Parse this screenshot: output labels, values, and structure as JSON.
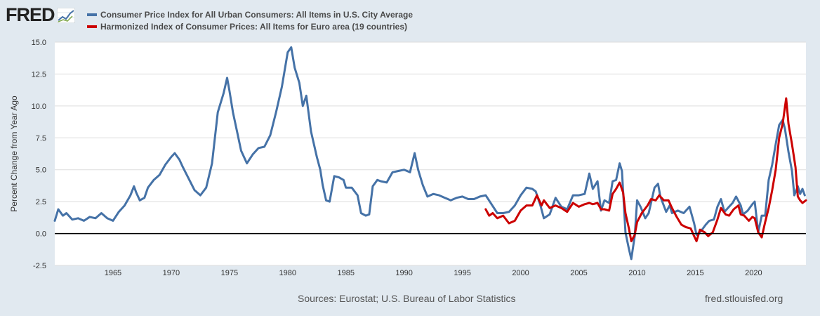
{
  "logo": {
    "text": "FRED"
  },
  "legend": [
    {
      "name": "Consumer Price Index for All Urban Consumers: All Items in U.S. City Average",
      "color": "#4572a7"
    },
    {
      "name": "Harmonized Index of Consumer Prices: All Items for Euro area (19 countries)",
      "color": "#cc0000"
    }
  ],
  "footer": {
    "sources": "Sources: Eurostat; U.S. Bureau of Labor Statistics",
    "url": "fred.stlouisfed.org"
  },
  "colors": {
    "background": "#e1e9f0",
    "plot_background": "#ffffff",
    "grid": "#dddddd",
    "zero_line": "#000000"
  },
  "chart_data": {
    "type": "line",
    "title": "",
    "xlabel": "",
    "ylabel": "Percent Change from Year Ago",
    "xlim": [
      1960,
      2024.5
    ],
    "ylim": [
      -2.5,
      15.0
    ],
    "x_ticks": [
      1965,
      1970,
      1975,
      1980,
      1985,
      1990,
      1995,
      2000,
      2005,
      2010,
      2015,
      2020
    ],
    "y_ticks": [
      -2.5,
      0.0,
      2.5,
      5.0,
      7.5,
      10.0,
      12.5,
      15.0
    ],
    "y_tick_labels": [
      "-2.5",
      "0.0",
      "2.5",
      "5.0",
      "7.5",
      "10.0",
      "12.5",
      "15.0"
    ],
    "grid": "horizontal",
    "legend_position": "top-left",
    "series": [
      {
        "name": "Consumer Price Index for All Urban Consumers: All Items in U.S. City Average",
        "color": "#4572a7",
        "points": [
          [
            1960.0,
            1.0
          ],
          [
            1960.3,
            1.9
          ],
          [
            1960.7,
            1.4
          ],
          [
            1961.0,
            1.6
          ],
          [
            1961.5,
            1.1
          ],
          [
            1962.0,
            1.2
          ],
          [
            1962.5,
            1.0
          ],
          [
            1963.0,
            1.3
          ],
          [
            1963.5,
            1.2
          ],
          [
            1964.0,
            1.6
          ],
          [
            1964.5,
            1.2
          ],
          [
            1965.0,
            1.0
          ],
          [
            1965.5,
            1.7
          ],
          [
            1966.0,
            2.2
          ],
          [
            1966.5,
            3.0
          ],
          [
            1966.8,
            3.7
          ],
          [
            1967.0,
            3.2
          ],
          [
            1967.3,
            2.6
          ],
          [
            1967.7,
            2.8
          ],
          [
            1968.0,
            3.6
          ],
          [
            1968.5,
            4.2
          ],
          [
            1969.0,
            4.6
          ],
          [
            1969.5,
            5.4
          ],
          [
            1970.0,
            6.0
          ],
          [
            1970.3,
            6.3
          ],
          [
            1970.7,
            5.8
          ],
          [
            1971.0,
            5.2
          ],
          [
            1971.5,
            4.3
          ],
          [
            1972.0,
            3.4
          ],
          [
            1972.5,
            3.0
          ],
          [
            1973.0,
            3.6
          ],
          [
            1973.5,
            5.5
          ],
          [
            1974.0,
            9.5
          ],
          [
            1974.5,
            11.0
          ],
          [
            1974.8,
            12.2
          ],
          [
            1975.0,
            11.2
          ],
          [
            1975.3,
            9.5
          ],
          [
            1975.7,
            7.8
          ],
          [
            1976.0,
            6.5
          ],
          [
            1976.5,
            5.5
          ],
          [
            1977.0,
            6.2
          ],
          [
            1977.5,
            6.7
          ],
          [
            1978.0,
            6.8
          ],
          [
            1978.5,
            7.7
          ],
          [
            1979.0,
            9.5
          ],
          [
            1979.5,
            11.5
          ],
          [
            1980.0,
            14.2
          ],
          [
            1980.3,
            14.6
          ],
          [
            1980.6,
            13.0
          ],
          [
            1981.0,
            11.8
          ],
          [
            1981.3,
            10.0
          ],
          [
            1981.6,
            10.8
          ],
          [
            1982.0,
            8.0
          ],
          [
            1982.5,
            6.0
          ],
          [
            1982.8,
            5.0
          ],
          [
            1983.0,
            3.8
          ],
          [
            1983.3,
            2.6
          ],
          [
            1983.6,
            2.5
          ],
          [
            1984.0,
            4.5
          ],
          [
            1984.4,
            4.4
          ],
          [
            1984.8,
            4.2
          ],
          [
            1985.0,
            3.6
          ],
          [
            1985.5,
            3.6
          ],
          [
            1986.0,
            3.0
          ],
          [
            1986.3,
            1.6
          ],
          [
            1986.7,
            1.4
          ],
          [
            1987.0,
            1.5
          ],
          [
            1987.3,
            3.7
          ],
          [
            1987.7,
            4.2
          ],
          [
            1988.0,
            4.1
          ],
          [
            1988.5,
            4.0
          ],
          [
            1989.0,
            4.8
          ],
          [
            1989.5,
            4.9
          ],
          [
            1990.0,
            5.0
          ],
          [
            1990.5,
            4.8
          ],
          [
            1990.9,
            6.3
          ],
          [
            1991.2,
            5.0
          ],
          [
            1991.6,
            3.8
          ],
          [
            1992.0,
            2.9
          ],
          [
            1992.5,
            3.1
          ],
          [
            1993.0,
            3.0
          ],
          [
            1993.5,
            2.8
          ],
          [
            1994.0,
            2.6
          ],
          [
            1994.5,
            2.8
          ],
          [
            1995.0,
            2.9
          ],
          [
            1995.5,
            2.7
          ],
          [
            1996.0,
            2.7
          ],
          [
            1996.5,
            2.9
          ],
          [
            1997.0,
            3.0
          ],
          [
            1997.5,
            2.3
          ],
          [
            1998.0,
            1.6
          ],
          [
            1998.5,
            1.6
          ],
          [
            1999.0,
            1.7
          ],
          [
            1999.5,
            2.2
          ],
          [
            2000.0,
            3.0
          ],
          [
            2000.5,
            3.6
          ],
          [
            2001.0,
            3.5
          ],
          [
            2001.3,
            3.3
          ],
          [
            2001.7,
            2.2
          ],
          [
            2002.0,
            1.2
          ],
          [
            2002.5,
            1.5
          ],
          [
            2003.0,
            2.8
          ],
          [
            2003.5,
            2.1
          ],
          [
            2004.0,
            1.9
          ],
          [
            2004.5,
            3.0
          ],
          [
            2005.0,
            3.0
          ],
          [
            2005.5,
            3.1
          ],
          [
            2005.9,
            4.7
          ],
          [
            2006.2,
            3.5
          ],
          [
            2006.6,
            4.1
          ],
          [
            2006.9,
            1.8
          ],
          [
            2007.2,
            2.6
          ],
          [
            2007.6,
            2.4
          ],
          [
            2007.9,
            4.1
          ],
          [
            2008.2,
            4.2
          ],
          [
            2008.5,
            5.5
          ],
          [
            2008.7,
            4.9
          ],
          [
            2009.0,
            0.1
          ],
          [
            2009.3,
            -1.2
          ],
          [
            2009.5,
            -2.0
          ],
          [
            2009.8,
            -0.2
          ],
          [
            2010.0,
            2.6
          ],
          [
            2010.3,
            2.1
          ],
          [
            2010.7,
            1.2
          ],
          [
            2011.0,
            1.6
          ],
          [
            2011.5,
            3.6
          ],
          [
            2011.8,
            3.9
          ],
          [
            2012.0,
            2.9
          ],
          [
            2012.5,
            1.7
          ],
          [
            2012.8,
            2.2
          ],
          [
            2013.0,
            1.6
          ],
          [
            2013.5,
            1.8
          ],
          [
            2014.0,
            1.6
          ],
          [
            2014.5,
            2.1
          ],
          [
            2014.9,
            0.8
          ],
          [
            2015.1,
            -0.1
          ],
          [
            2015.5,
            0.2
          ],
          [
            2015.9,
            0.7
          ],
          [
            2016.2,
            1.0
          ],
          [
            2016.6,
            1.1
          ],
          [
            2016.9,
            2.1
          ],
          [
            2017.2,
            2.7
          ],
          [
            2017.5,
            1.7
          ],
          [
            2017.9,
            2.1
          ],
          [
            2018.2,
            2.4
          ],
          [
            2018.5,
            2.9
          ],
          [
            2018.9,
            2.2
          ],
          [
            2019.1,
            1.5
          ],
          [
            2019.5,
            1.8
          ],
          [
            2019.9,
            2.3
          ],
          [
            2020.1,
            2.5
          ],
          [
            2020.4,
            0.1
          ],
          [
            2020.7,
            1.4
          ],
          [
            2021.0,
            1.4
          ],
          [
            2021.3,
            4.2
          ],
          [
            2021.6,
            5.4
          ],
          [
            2021.9,
            7.0
          ],
          [
            2022.2,
            8.5
          ],
          [
            2022.5,
            8.9
          ],
          [
            2022.7,
            8.2
          ],
          [
            2023.0,
            6.4
          ],
          [
            2023.3,
            4.9
          ],
          [
            2023.5,
            3.0
          ],
          [
            2023.8,
            3.7
          ],
          [
            2024.0,
            3.1
          ],
          [
            2024.2,
            3.5
          ],
          [
            2024.4,
            3.0
          ]
        ]
      },
      {
        "name": "Harmonized Index of Consumer Prices: All Items for Euro area (19 countries)",
        "color": "#cc0000",
        "points": [
          [
            1997.0,
            1.9
          ],
          [
            1997.3,
            1.4
          ],
          [
            1997.6,
            1.6
          ],
          [
            1998.0,
            1.2
          ],
          [
            1998.5,
            1.4
          ],
          [
            1999.0,
            0.8
          ],
          [
            1999.5,
            1.0
          ],
          [
            2000.0,
            1.8
          ],
          [
            2000.5,
            2.2
          ],
          [
            2001.0,
            2.2
          ],
          [
            2001.4,
            3.0
          ],
          [
            2001.8,
            2.2
          ],
          [
            2002.0,
            2.6
          ],
          [
            2002.5,
            2.0
          ],
          [
            2003.0,
            2.2
          ],
          [
            2003.5,
            2.0
          ],
          [
            2004.0,
            1.7
          ],
          [
            2004.5,
            2.4
          ],
          [
            2005.0,
            2.1
          ],
          [
            2005.5,
            2.3
          ],
          [
            2005.9,
            2.4
          ],
          [
            2006.2,
            2.3
          ],
          [
            2006.6,
            2.4
          ],
          [
            2006.9,
            1.9
          ],
          [
            2007.2,
            1.9
          ],
          [
            2007.6,
            1.8
          ],
          [
            2007.9,
            3.1
          ],
          [
            2008.2,
            3.5
          ],
          [
            2008.5,
            4.0
          ],
          [
            2008.8,
            3.2
          ],
          [
            2009.0,
            1.6
          ],
          [
            2009.3,
            0.4
          ],
          [
            2009.5,
            -0.6
          ],
          [
            2009.8,
            -0.1
          ],
          [
            2010.0,
            0.9
          ],
          [
            2010.4,
            1.6
          ],
          [
            2010.9,
            2.2
          ],
          [
            2011.2,
            2.7
          ],
          [
            2011.6,
            2.6
          ],
          [
            2011.9,
            3.0
          ],
          [
            2012.3,
            2.6
          ],
          [
            2012.7,
            2.6
          ],
          [
            2013.0,
            2.0
          ],
          [
            2013.4,
            1.3
          ],
          [
            2013.8,
            0.7
          ],
          [
            2014.2,
            0.5
          ],
          [
            2014.6,
            0.4
          ],
          [
            2014.9,
            -0.2
          ],
          [
            2015.1,
            -0.6
          ],
          [
            2015.4,
            0.3
          ],
          [
            2015.8,
            0.1
          ],
          [
            2016.1,
            -0.2
          ],
          [
            2016.5,
            0.1
          ],
          [
            2016.9,
            1.1
          ],
          [
            2017.2,
            2.0
          ],
          [
            2017.6,
            1.5
          ],
          [
            2017.9,
            1.4
          ],
          [
            2018.3,
            1.9
          ],
          [
            2018.7,
            2.2
          ],
          [
            2018.9,
            1.5
          ],
          [
            2019.2,
            1.4
          ],
          [
            2019.6,
            1.0
          ],
          [
            2019.9,
            1.3
          ],
          [
            2020.1,
            1.2
          ],
          [
            2020.4,
            0.1
          ],
          [
            2020.7,
            -0.3
          ],
          [
            2021.0,
            0.9
          ],
          [
            2021.3,
            2.0
          ],
          [
            2021.6,
            3.4
          ],
          [
            2021.9,
            5.0
          ],
          [
            2022.2,
            7.5
          ],
          [
            2022.5,
            8.6
          ],
          [
            2022.8,
            10.6
          ],
          [
            2023.0,
            8.6
          ],
          [
            2023.3,
            7.0
          ],
          [
            2023.6,
            5.2
          ],
          [
            2023.8,
            2.9
          ],
          [
            2024.0,
            2.6
          ],
          [
            2024.2,
            2.4
          ],
          [
            2024.5,
            2.6
          ]
        ]
      }
    ]
  }
}
